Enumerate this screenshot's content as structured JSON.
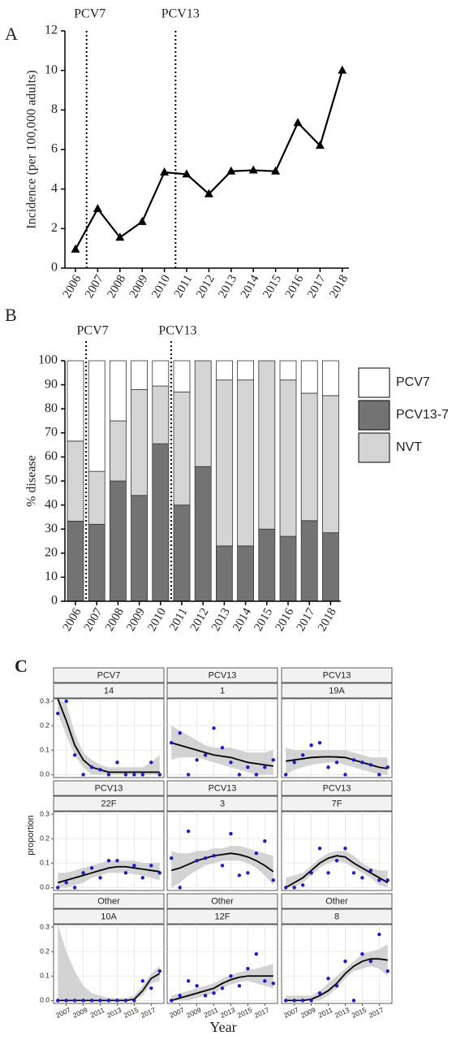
{
  "chart_data": [
    {
      "type": "line",
      "panel_label": "A",
      "y_label": "Incidence (per 100,000 adults)",
      "categories": [
        "2006",
        "2007",
        "2008",
        "2009",
        "2010",
        "2011",
        "2012",
        "2013",
        "2014",
        "2015",
        "2016",
        "2017",
        "2018"
      ],
      "values": [
        0.95,
        3.0,
        1.55,
        2.35,
        4.85,
        4.75,
        3.75,
        4.9,
        4.95,
        4.9,
        7.35,
        6.2,
        10.0
      ],
      "color": "#000000",
      "marker": "triangle",
      "ylim": [
        0,
        12
      ],
      "yticks": [
        0,
        2,
        4,
        6,
        8,
        10,
        12
      ],
      "annotations": [
        {
          "text": "PCV7",
          "x": 0.5
        },
        {
          "text": "PCV13",
          "x": 4.5
        }
      ]
    },
    {
      "type": "stacked_bar",
      "panel_label": "B",
      "y_label": "% disease",
      "categories": [
        "2006",
        "2007",
        "2008",
        "2009",
        "2010",
        "2011",
        "2012",
        "2013",
        "2014",
        "2015",
        "2016",
        "2017",
        "2018"
      ],
      "series": [
        {
          "name": "PCV7",
          "color": "#ffffff",
          "values": [
            33.4,
            46,
            25,
            12,
            10.5,
            13,
            0,
            8,
            8,
            0,
            8,
            13.5,
            14.5
          ]
        },
        {
          "name": "PCV13-7",
          "color": "#737373",
          "values": [
            33.3,
            32,
            50,
            44,
            65.5,
            40,
            56,
            23,
            23,
            30,
            27,
            33.5,
            28.5
          ]
        },
        {
          "name": "NVT",
          "color": "#d4d4d4",
          "values": [
            33.3,
            22,
            25,
            44,
            24,
            47,
            44,
            69,
            69,
            70,
            65,
            53,
            57
          ]
        }
      ],
      "ylim": [
        0,
        100
      ],
      "yticks": [
        0,
        10,
        20,
        30,
        40,
        50,
        60,
        70,
        80,
        90,
        100
      ],
      "annotations": [
        {
          "text": "PCV7",
          "x": 0.5
        },
        {
          "text": "PCV13",
          "x": 4.5
        }
      ]
    },
    {
      "type": "scatter",
      "panel_label": "C",
      "x_label": "Year",
      "y_label": "proportion",
      "x": [
        2006,
        2007,
        2008,
        2009,
        2010,
        2011,
        2012,
        2013,
        2014,
        2015,
        2016,
        2017,
        2018
      ],
      "xlim": [
        2005.5,
        2018.5
      ],
      "xticks": [
        2007,
        2009,
        2011,
        2013,
        2015,
        2017
      ],
      "ylim": [
        -0.012,
        0.31
      ],
      "yticks": [
        {
          "value": 0,
          "label": "0.0"
        },
        {
          "value": 0.1,
          "label": "0.1"
        },
        {
          "value": 0.2,
          "label": "0.2"
        },
        {
          "value": 0.3,
          "label": "0.3"
        }
      ],
      "color": "#1a1ad6",
      "line_color": "#000000",
      "band_color": "#c8c8c8",
      "grid": true,
      "facets": [
        {
          "strip": [
            "PCV7",
            "14"
          ],
          "values": [
            0.25,
            0.3,
            0.08,
            0.0,
            0.03,
            0.02,
            0.0,
            0.05,
            0.0,
            0.0,
            0.0,
            0.05,
            0.0
          ],
          "fit": [
            0.31,
            0.22,
            0.12,
            0.06,
            0.03,
            0.02,
            0.01,
            0.01,
            0.01,
            0.01,
            0.01,
            0.01,
            0.01
          ],
          "fit_lower": [
            0.25,
            0.16,
            0.08,
            0.03,
            0.0,
            0,
            0,
            0,
            0,
            0,
            0,
            0,
            0
          ],
          "fit_upper": [
            0.31,
            0.29,
            0.17,
            0.09,
            0.06,
            0.04,
            0.03,
            0.03,
            0.03,
            0.03,
            0.03,
            0.05,
            0.08
          ]
        },
        {
          "strip": [
            "PCV13",
            "1"
          ],
          "values": [
            0.13,
            0.17,
            0.0,
            0.06,
            0.08,
            0.19,
            0.11,
            0.05,
            0.0,
            0.03,
            0.0,
            0.03,
            0.06
          ],
          "fit": [
            0.13,
            0.12,
            0.11,
            0.1,
            0.09,
            0.08,
            0.075,
            0.07,
            0.06,
            0.05,
            0.045,
            0.04,
            0.035
          ],
          "fit_lower": [
            0.06,
            0.07,
            0.07,
            0.07,
            0.06,
            0.05,
            0.04,
            0.03,
            0.02,
            0.01,
            0,
            0,
            0
          ],
          "fit_upper": [
            0.2,
            0.18,
            0.16,
            0.14,
            0.12,
            0.11,
            0.11,
            0.11,
            0.1,
            0.09,
            0.09,
            0.09,
            0.1
          ]
        },
        {
          "strip": [
            "PCV13",
            "19A"
          ],
          "values": [
            0.0,
            0.05,
            0.08,
            0.12,
            0.13,
            0.03,
            0.05,
            0.0,
            0.06,
            0.05,
            0.04,
            0.0,
            0.03
          ],
          "fit": [
            0.055,
            0.06,
            0.065,
            0.07,
            0.072,
            0.073,
            0.072,
            0.07,
            0.06,
            0.05,
            0.04,
            0.03,
            0.025
          ],
          "fit_lower": [
            0.0,
            0.02,
            0.03,
            0.04,
            0.045,
            0.05,
            0.05,
            0.04,
            0.03,
            0.02,
            0.01,
            0,
            0
          ],
          "fit_upper": [
            0.11,
            0.1,
            0.1,
            0.1,
            0.1,
            0.1,
            0.1,
            0.1,
            0.09,
            0.08,
            0.07,
            0.07,
            0.07
          ]
        },
        {
          "strip": [
            "PCV13",
            "22F"
          ],
          "values": [
            0.0,
            0.02,
            0.0,
            0.06,
            0.08,
            0.04,
            0.11,
            0.11,
            0.06,
            0.09,
            0.04,
            0.09,
            0.06
          ],
          "fit": [
            0.02,
            0.03,
            0.04,
            0.05,
            0.06,
            0.07,
            0.08,
            0.085,
            0.085,
            0.08,
            0.075,
            0.07,
            0.065
          ],
          "fit_lower": [
            0,
            0,
            0.01,
            0.02,
            0.04,
            0.05,
            0.06,
            0.06,
            0.06,
            0.055,
            0.05,
            0.04,
            0.03
          ],
          "fit_upper": [
            0.06,
            0.06,
            0.07,
            0.08,
            0.09,
            0.1,
            0.11,
            0.11,
            0.11,
            0.11,
            0.1,
            0.1,
            0.1
          ]
        },
        {
          "strip": [
            "PCV13",
            "3"
          ],
          "values": [
            0.12,
            0.0,
            0.23,
            0.11,
            0.12,
            0.13,
            0.09,
            0.22,
            0.05,
            0.06,
            0.14,
            0.19,
            0.03
          ],
          "fit": [
            0.07,
            0.08,
            0.095,
            0.11,
            0.12,
            0.13,
            0.135,
            0.14,
            0.135,
            0.125,
            0.11,
            0.09,
            0.065
          ],
          "fit_lower": [
            0.0,
            0.02,
            0.05,
            0.07,
            0.09,
            0.1,
            0.11,
            0.11,
            0.11,
            0.1,
            0.08,
            0.05,
            0.01
          ],
          "fit_upper": [
            0.15,
            0.14,
            0.14,
            0.15,
            0.15,
            0.16,
            0.16,
            0.17,
            0.17,
            0.16,
            0.15,
            0.14,
            0.13
          ]
        },
        {
          "strip": [
            "PCV13",
            "7F"
          ],
          "values": [
            0.0,
            0.0,
            0.01,
            0.06,
            0.16,
            0.06,
            0.11,
            0.16,
            0.06,
            0.04,
            0.07,
            0.03,
            0.03
          ],
          "fit": [
            0.0,
            0.02,
            0.04,
            0.07,
            0.1,
            0.12,
            0.13,
            0.125,
            0.1,
            0.08,
            0.06,
            0.04,
            0.02
          ],
          "fit_lower": [
            0,
            0,
            0.02,
            0.05,
            0.08,
            0.1,
            0.11,
            0.1,
            0.08,
            0.06,
            0.04,
            0.01,
            0
          ],
          "fit_upper": [
            0.04,
            0.05,
            0.06,
            0.09,
            0.12,
            0.14,
            0.15,
            0.15,
            0.13,
            0.1,
            0.08,
            0.07,
            0.07
          ]
        },
        {
          "strip": [
            "Other",
            "10A"
          ],
          "values": [
            0,
            0,
            0,
            0,
            0,
            0,
            0,
            0,
            0,
            0,
            0.08,
            0.05,
            0.12
          ],
          "fit": [
            0,
            0,
            0,
            0,
            0,
            0,
            0,
            0,
            0,
            0.005,
            0.04,
            0.09,
            0.11
          ],
          "fit_lower": [
            0,
            0,
            0,
            0,
            0,
            0,
            0,
            0,
            0,
            0,
            0.02,
            0.07,
            0.08
          ],
          "fit_upper": [
            0.31,
            0.2,
            0.12,
            0.06,
            0.03,
            0.02,
            0.01,
            0.01,
            0.01,
            0.02,
            0.06,
            0.11,
            0.14
          ]
        },
        {
          "strip": [
            "Other",
            "12F"
          ],
          "values": [
            0.0,
            0.02,
            0.08,
            0.06,
            0.02,
            0.03,
            0.05,
            0.1,
            0.06,
            0.13,
            0.19,
            0.08,
            0.07
          ],
          "fit": [
            0.0,
            0.01,
            0.02,
            0.03,
            0.04,
            0.05,
            0.07,
            0.085,
            0.095,
            0.1,
            0.1,
            0.1,
            0.1
          ],
          "fit_lower": [
            0,
            0,
            0,
            0.01,
            0.02,
            0.03,
            0.05,
            0.065,
            0.075,
            0.08,
            0.07,
            0.06,
            0.05
          ],
          "fit_upper": [
            0.02,
            0.03,
            0.04,
            0.05,
            0.06,
            0.07,
            0.09,
            0.105,
            0.115,
            0.125,
            0.13,
            0.14,
            0.15
          ]
        },
        {
          "strip": [
            "Other",
            "8"
          ],
          "values": [
            0.0,
            0.0,
            0.0,
            0.0,
            0.03,
            0.09,
            0.06,
            0.16,
            0.0,
            0.19,
            0.16,
            0.27,
            0.12
          ],
          "fit": [
            0,
            0,
            0,
            0.005,
            0.02,
            0.04,
            0.07,
            0.11,
            0.14,
            0.16,
            0.17,
            0.17,
            0.165
          ],
          "fit_lower": [
            0,
            0,
            0,
            0,
            0,
            0.02,
            0.05,
            0.09,
            0.12,
            0.13,
            0.14,
            0.13,
            0.1
          ],
          "fit_upper": [
            0.02,
            0.02,
            0.02,
            0.02,
            0.04,
            0.07,
            0.1,
            0.13,
            0.16,
            0.19,
            0.2,
            0.21,
            0.23
          ]
        }
      ]
    }
  ]
}
